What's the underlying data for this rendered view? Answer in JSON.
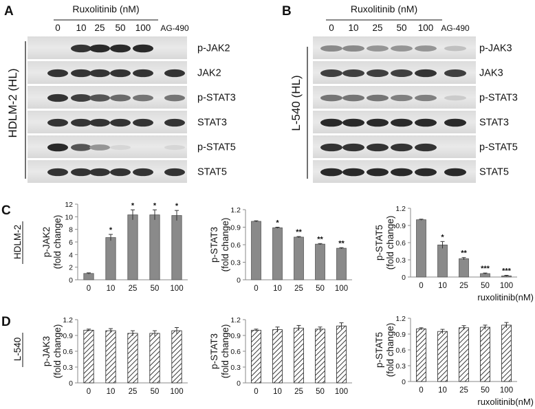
{
  "panels": {
    "A": "A",
    "B": "B",
    "C": "C",
    "D": "D"
  },
  "blots": [
    {
      "id": "A",
      "treatment_label": "Ruxolitinib (nM)",
      "lanes": [
        "0",
        "10",
        "25",
        "50",
        "100"
      ],
      "control_lane": "AG-490",
      "cell_line": "HDLM-2 (HL)",
      "strips": [
        {
          "label": "p-JAK2",
          "intensity": [
            0.0,
            0.85,
            0.9,
            0.9,
            0.9,
            0.0
          ]
        },
        {
          "label": "JAK2",
          "intensity": [
            0.85,
            0.85,
            0.85,
            0.85,
            0.85,
            0.85
          ]
        },
        {
          "label": "p-STAT3",
          "intensity": [
            0.85,
            0.8,
            0.7,
            0.6,
            0.55,
            0.55
          ]
        },
        {
          "label": "STAT3",
          "intensity": [
            0.85,
            0.85,
            0.85,
            0.85,
            0.85,
            0.85
          ]
        },
        {
          "label": "p-STAT5",
          "intensity": [
            0.9,
            0.7,
            0.4,
            0.1,
            0.0,
            0.1
          ]
        },
        {
          "label": "STAT5",
          "intensity": [
            0.85,
            0.85,
            0.85,
            0.85,
            0.85,
            0.85
          ]
        }
      ]
    },
    {
      "id": "B",
      "treatment_label": "Ruxolitinib (nM)",
      "lanes": [
        "0",
        "10",
        "25",
        "50",
        "100"
      ],
      "control_lane": "AG-490",
      "cell_line": "L-540 (HL)",
      "strips": [
        {
          "label": "p-JAK3",
          "intensity": [
            0.45,
            0.45,
            0.4,
            0.4,
            0.4,
            0.2
          ]
        },
        {
          "label": "JAK3",
          "intensity": [
            0.8,
            0.8,
            0.8,
            0.8,
            0.85,
            0.8
          ]
        },
        {
          "label": "p-STAT3",
          "intensity": [
            0.55,
            0.55,
            0.55,
            0.5,
            0.5,
            0.15
          ]
        },
        {
          "label": "STAT3",
          "intensity": [
            0.9,
            0.9,
            0.9,
            0.9,
            0.9,
            0.9
          ]
        },
        {
          "label": "p-STAT5",
          "intensity": [
            0.85,
            0.85,
            0.85,
            0.85,
            0.85,
            0.0
          ]
        },
        {
          "label": "STAT5",
          "intensity": [
            0.9,
            0.9,
            0.9,
            0.9,
            0.9,
            0.9
          ]
        }
      ]
    }
  ],
  "row_labels": {
    "C": "HDLM-2",
    "D": "L-540"
  },
  "chart_data": [
    {
      "type": "bar",
      "panel": "C",
      "categories": [
        "0",
        "10",
        "25",
        "50",
        "100"
      ],
      "values": [
        1.0,
        6.7,
        10.3,
        10.3,
        10.2
      ],
      "errors": [
        0.1,
        0.5,
        0.8,
        0.8,
        0.8
      ],
      "stars": [
        "",
        "*",
        "*",
        "*",
        "*"
      ],
      "ylabel": "p-JAK2 (fold change)",
      "ylim": [
        0,
        12
      ],
      "yticks": [
        "0",
        "2",
        "4",
        "6",
        "8",
        "10",
        "12"
      ],
      "pattern": "solid",
      "color": "#8a8a8a",
      "xlabel": ""
    },
    {
      "type": "bar",
      "panel": "C",
      "categories": [
        "0",
        "10",
        "25",
        "50",
        "100"
      ],
      "values": [
        1.0,
        0.89,
        0.73,
        0.61,
        0.54
      ],
      "errors": [
        0.01,
        0.01,
        0.01,
        0.01,
        0.01
      ],
      "stars": [
        "",
        "*",
        "**",
        "**",
        "**"
      ],
      "ylabel": "p-STAT3 (fold change)",
      "ylim": [
        0,
        1.2
      ],
      "yticks": [
        "0",
        "0.3",
        "0.6",
        "0.9",
        "1.2"
      ],
      "pattern": "solid",
      "color": "#8a8a8a",
      "xlabel": ""
    },
    {
      "type": "bar",
      "panel": "C",
      "categories": [
        "0",
        "10",
        "25",
        "50",
        "100"
      ],
      "values": [
        1.0,
        0.56,
        0.32,
        0.06,
        0.02
      ],
      "errors": [
        0.01,
        0.06,
        0.02,
        0.01,
        0.01
      ],
      "stars": [
        "",
        "*",
        "**",
        "***",
        "***"
      ],
      "ylabel": "p-STAT5 (fold change)",
      "ylim": [
        0,
        1.2
      ],
      "yticks": [
        "0",
        "0.3",
        "0.6",
        "0.9",
        "1.2"
      ],
      "pattern": "solid",
      "color": "#8a8a8a",
      "xlabel": "ruxolitinib(nM)"
    },
    {
      "type": "bar",
      "panel": "D",
      "categories": [
        "0",
        "10",
        "25",
        "50",
        "100"
      ],
      "values": [
        1.0,
        0.99,
        0.94,
        0.94,
        0.99
      ],
      "errors": [
        0.02,
        0.04,
        0.05,
        0.05,
        0.06
      ],
      "stars": [
        "",
        "",
        "",
        "",
        ""
      ],
      "ylabel": "p-JAK3 (fold change)",
      "ylim": [
        0,
        1.2
      ],
      "yticks": [
        "0",
        "0.3",
        "0.6",
        "0.9",
        "1.2"
      ],
      "pattern": "hatched",
      "color": "#333333",
      "xlabel": ""
    },
    {
      "type": "bar",
      "panel": "D",
      "categories": [
        "0",
        "10",
        "25",
        "50",
        "100"
      ],
      "values": [
        1.0,
        1.01,
        1.04,
        1.02,
        1.08
      ],
      "errors": [
        0.02,
        0.05,
        0.05,
        0.04,
        0.06
      ],
      "stars": [
        "",
        "",
        "",
        "",
        ""
      ],
      "ylabel": "p-STAT3 (fold change)",
      "ylim": [
        0,
        1.2
      ],
      "yticks": [
        "0",
        "0.3",
        "0.6",
        "0.9",
        "1.2"
      ],
      "pattern": "hatched",
      "color": "#333333",
      "xlabel": ""
    },
    {
      "type": "bar",
      "panel": "D",
      "categories": [
        "0",
        "10",
        "25",
        "50",
        "100"
      ],
      "values": [
        1.0,
        0.95,
        1.02,
        1.03,
        1.07
      ],
      "errors": [
        0.02,
        0.04,
        0.04,
        0.04,
        0.05
      ],
      "stars": [
        "",
        "",
        "",
        "",
        ""
      ],
      "ylabel": "p-STAT5 (fold change)",
      "ylim": [
        0,
        1.2
      ],
      "yticks": [
        "0",
        "0.3",
        "0.6",
        "0.9",
        "1.2"
      ],
      "pattern": "hatched",
      "color": "#333333",
      "xlabel": "ruxolitinib(nM)"
    }
  ]
}
